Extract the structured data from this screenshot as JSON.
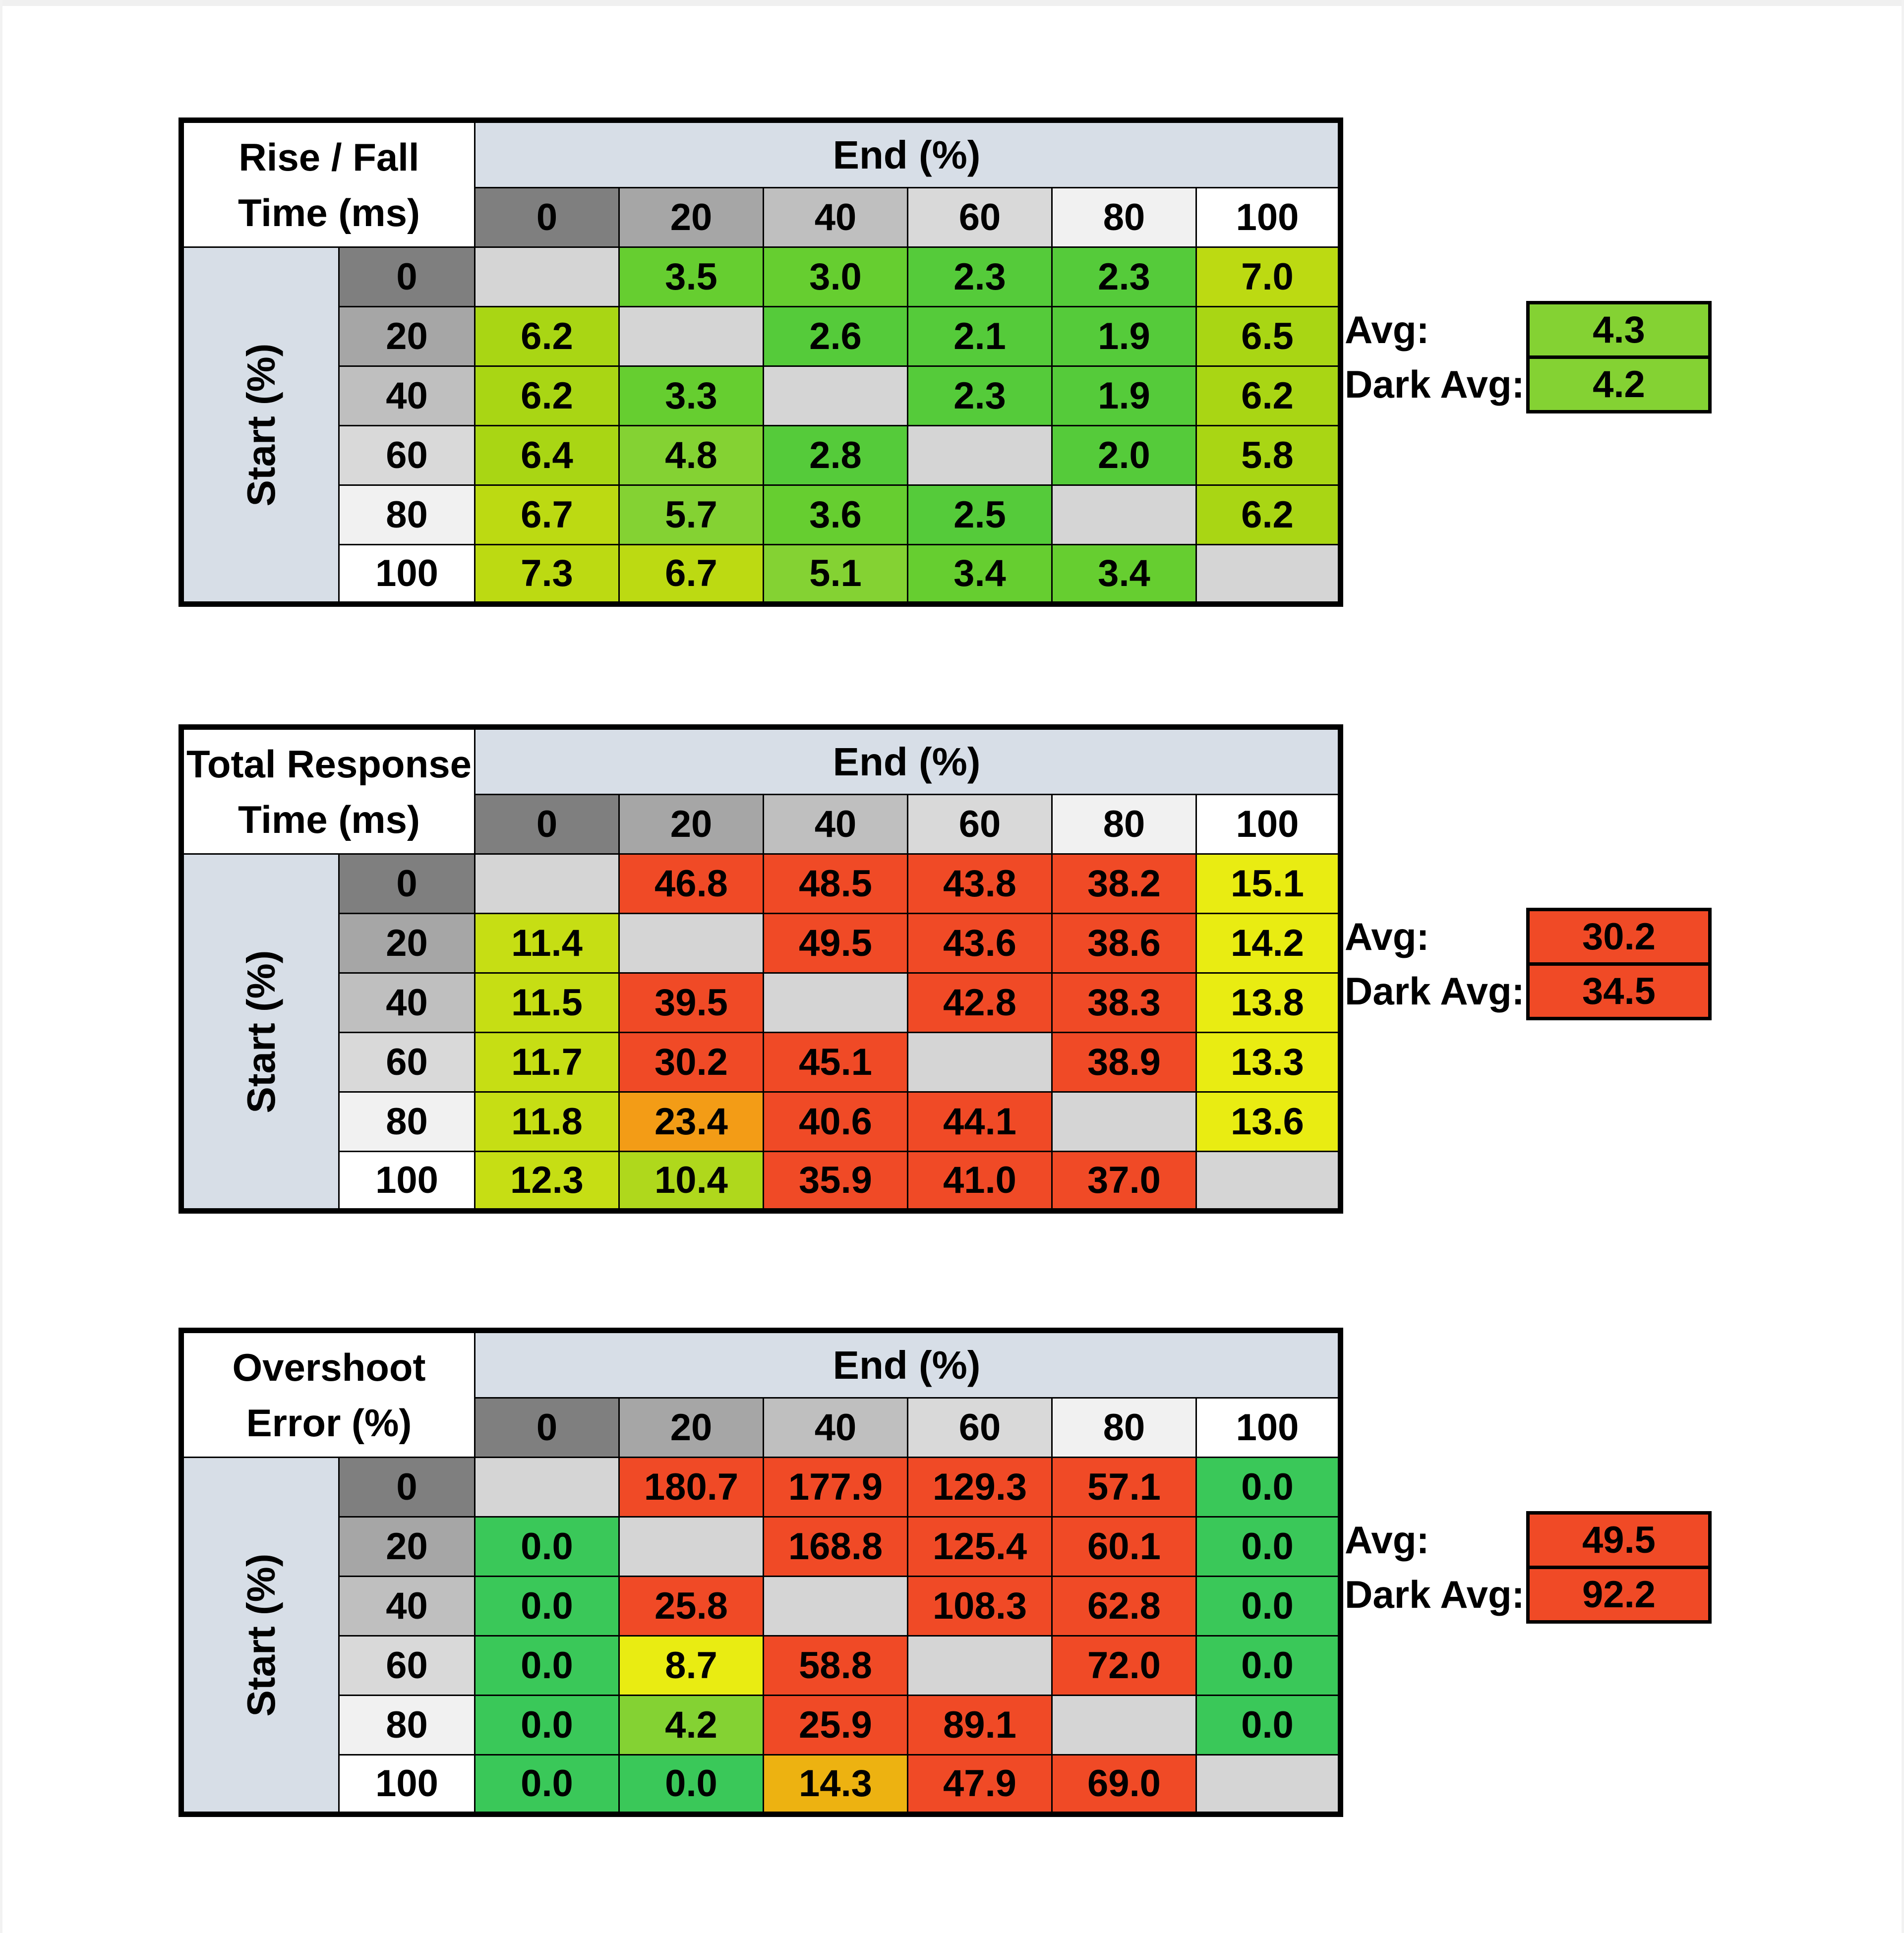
{
  "axis": {
    "col_header": "End (%)",
    "row_header": "Start (%)",
    "levels": [
      "0",
      "20",
      "40",
      "60",
      "80",
      "100"
    ]
  },
  "annotations": {
    "avg_label": "Avg:",
    "dark_avg_label": "Dark Avg:"
  },
  "palette": {
    "G0": "#3AC859",
    "G1": "#55CB3A",
    "G2": "#66CE30",
    "G3": "#84D233",
    "G4": "#A9D614",
    "G5": "#BCDA12",
    "YG": "#C6DE14",
    "YG2": "#AFD81C",
    "Y": "#E9EC12",
    "O1": "#EDB211",
    "O2": "#F39C16",
    "R": "#F04A26",
    "diag": "#D5D5D5"
  },
  "header_colors": {
    "band": "#D7DEE7",
    "scale": [
      "#7F7F7F",
      "#A6A6A6",
      "#BFBFBF",
      "#D9D9D9",
      "#F1F1F1",
      "#FFFFFF"
    ]
  },
  "tables": [
    {
      "title_line1": "Rise / Fall",
      "title_line2": "Time (ms)",
      "avg": {
        "value": "4.3",
        "color": "G3"
      },
      "dark_avg": {
        "value": "4.2",
        "color": "G3"
      },
      "rows": [
        [
          {
            "v": "",
            "c": "diag"
          },
          {
            "v": "3.5",
            "c": "G2"
          },
          {
            "v": "3.0",
            "c": "G2"
          },
          {
            "v": "2.3",
            "c": "G1"
          },
          {
            "v": "2.3",
            "c": "G1"
          },
          {
            "v": "7.0",
            "c": "G5"
          }
        ],
        [
          {
            "v": "6.2",
            "c": "G4"
          },
          {
            "v": "",
            "c": "diag"
          },
          {
            "v": "2.6",
            "c": "G1"
          },
          {
            "v": "2.1",
            "c": "G1"
          },
          {
            "v": "1.9",
            "c": "G1"
          },
          {
            "v": "6.5",
            "c": "G4"
          }
        ],
        [
          {
            "v": "6.2",
            "c": "G4"
          },
          {
            "v": "3.3",
            "c": "G2"
          },
          {
            "v": "",
            "c": "diag"
          },
          {
            "v": "2.3",
            "c": "G1"
          },
          {
            "v": "1.9",
            "c": "G1"
          },
          {
            "v": "6.2",
            "c": "G4"
          }
        ],
        [
          {
            "v": "6.4",
            "c": "G4"
          },
          {
            "v": "4.8",
            "c": "G3"
          },
          {
            "v": "2.8",
            "c": "G1"
          },
          {
            "v": "",
            "c": "diag"
          },
          {
            "v": "2.0",
            "c": "G1"
          },
          {
            "v": "5.8",
            "c": "G4"
          }
        ],
        [
          {
            "v": "6.7",
            "c": "G5"
          },
          {
            "v": "5.7",
            "c": "G3"
          },
          {
            "v": "3.6",
            "c": "G2"
          },
          {
            "v": "2.5",
            "c": "G1"
          },
          {
            "v": "",
            "c": "diag"
          },
          {
            "v": "6.2",
            "c": "G4"
          }
        ],
        [
          {
            "v": "7.3",
            "c": "G5"
          },
          {
            "v": "6.7",
            "c": "G5"
          },
          {
            "v": "5.1",
            "c": "G3"
          },
          {
            "v": "3.4",
            "c": "G2"
          },
          {
            "v": "3.4",
            "c": "G2"
          },
          {
            "v": "",
            "c": "diag"
          }
        ]
      ]
    },
    {
      "title_line1": "Total Response",
      "title_line2": "Time (ms)",
      "avg": {
        "value": "30.2",
        "color": "R"
      },
      "dark_avg": {
        "value": "34.5",
        "color": "R"
      },
      "rows": [
        [
          {
            "v": "",
            "c": "diag"
          },
          {
            "v": "46.8",
            "c": "R"
          },
          {
            "v": "48.5",
            "c": "R"
          },
          {
            "v": "43.8",
            "c": "R"
          },
          {
            "v": "38.2",
            "c": "R"
          },
          {
            "v": "15.1",
            "c": "Y"
          }
        ],
        [
          {
            "v": "11.4",
            "c": "YG"
          },
          {
            "v": "",
            "c": "diag"
          },
          {
            "v": "49.5",
            "c": "R"
          },
          {
            "v": "43.6",
            "c": "R"
          },
          {
            "v": "38.6",
            "c": "R"
          },
          {
            "v": "14.2",
            "c": "Y"
          }
        ],
        [
          {
            "v": "11.5",
            "c": "YG"
          },
          {
            "v": "39.5",
            "c": "R"
          },
          {
            "v": "",
            "c": "diag"
          },
          {
            "v": "42.8",
            "c": "R"
          },
          {
            "v": "38.3",
            "c": "R"
          },
          {
            "v": "13.8",
            "c": "Y"
          }
        ],
        [
          {
            "v": "11.7",
            "c": "YG"
          },
          {
            "v": "30.2",
            "c": "R"
          },
          {
            "v": "45.1",
            "c": "R"
          },
          {
            "v": "",
            "c": "diag"
          },
          {
            "v": "38.9",
            "c": "R"
          },
          {
            "v": "13.3",
            "c": "Y"
          }
        ],
        [
          {
            "v": "11.8",
            "c": "YG"
          },
          {
            "v": "23.4",
            "c": "O2"
          },
          {
            "v": "40.6",
            "c": "R"
          },
          {
            "v": "44.1",
            "c": "R"
          },
          {
            "v": "",
            "c": "diag"
          },
          {
            "v": "13.6",
            "c": "Y"
          }
        ],
        [
          {
            "v": "12.3",
            "c": "YG"
          },
          {
            "v": "10.4",
            "c": "YG2"
          },
          {
            "v": "35.9",
            "c": "R"
          },
          {
            "v": "41.0",
            "c": "R"
          },
          {
            "v": "37.0",
            "c": "R"
          },
          {
            "v": "",
            "c": "diag"
          }
        ]
      ]
    },
    {
      "title_line1": "Overshoot",
      "title_line2": "Error (%)",
      "avg": {
        "value": "49.5",
        "color": "R"
      },
      "dark_avg": {
        "value": "92.2",
        "color": "R"
      },
      "rows": [
        [
          {
            "v": "",
            "c": "diag"
          },
          {
            "v": "180.7",
            "c": "R"
          },
          {
            "v": "177.9",
            "c": "R"
          },
          {
            "v": "129.3",
            "c": "R"
          },
          {
            "v": "57.1",
            "c": "R"
          },
          {
            "v": "0.0",
            "c": "G0"
          }
        ],
        [
          {
            "v": "0.0",
            "c": "G0"
          },
          {
            "v": "",
            "c": "diag"
          },
          {
            "v": "168.8",
            "c": "R"
          },
          {
            "v": "125.4",
            "c": "R"
          },
          {
            "v": "60.1",
            "c": "R"
          },
          {
            "v": "0.0",
            "c": "G0"
          }
        ],
        [
          {
            "v": "0.0",
            "c": "G0"
          },
          {
            "v": "25.8",
            "c": "R"
          },
          {
            "v": "",
            "c": "diag"
          },
          {
            "v": "108.3",
            "c": "R"
          },
          {
            "v": "62.8",
            "c": "R"
          },
          {
            "v": "0.0",
            "c": "G0"
          }
        ],
        [
          {
            "v": "0.0",
            "c": "G0"
          },
          {
            "v": "8.7",
            "c": "Y"
          },
          {
            "v": "58.8",
            "c": "R"
          },
          {
            "v": "",
            "c": "diag"
          },
          {
            "v": "72.0",
            "c": "R"
          },
          {
            "v": "0.0",
            "c": "G0"
          }
        ],
        [
          {
            "v": "0.0",
            "c": "G0"
          },
          {
            "v": "4.2",
            "c": "G3"
          },
          {
            "v": "25.9",
            "c": "R"
          },
          {
            "v": "89.1",
            "c": "R"
          },
          {
            "v": "",
            "c": "diag"
          },
          {
            "v": "0.0",
            "c": "G0"
          }
        ],
        [
          {
            "v": "0.0",
            "c": "G0"
          },
          {
            "v": "0.0",
            "c": "G0"
          },
          {
            "v": "14.3",
            "c": "O1"
          },
          {
            "v": "47.9",
            "c": "R"
          },
          {
            "v": "69.0",
            "c": "R"
          },
          {
            "v": "",
            "c": "diag"
          }
        ]
      ]
    }
  ],
  "chart_data": [
    {
      "type": "heatmap",
      "title": "Rise / Fall Time (ms)",
      "xlabel": "End (%)",
      "ylabel": "Start (%)",
      "x": [
        0,
        20,
        40,
        60,
        80,
        100
      ],
      "y": [
        0,
        20,
        40,
        60,
        80,
        100
      ],
      "values": [
        [
          null,
          3.5,
          3.0,
          2.3,
          2.3,
          7.0
        ],
        [
          6.2,
          null,
          2.6,
          2.1,
          1.9,
          6.5
        ],
        [
          6.2,
          3.3,
          null,
          2.3,
          1.9,
          6.2
        ],
        [
          6.4,
          4.8,
          2.8,
          null,
          2.0,
          5.8
        ],
        [
          6.7,
          5.7,
          3.6,
          2.5,
          null,
          6.2
        ],
        [
          7.3,
          6.7,
          5.1,
          3.4,
          3.4,
          null
        ]
      ],
      "avg": 4.3,
      "dark_avg": 4.2
    },
    {
      "type": "heatmap",
      "title": "Total Response Time (ms)",
      "xlabel": "End (%)",
      "ylabel": "Start (%)",
      "x": [
        0,
        20,
        40,
        60,
        80,
        100
      ],
      "y": [
        0,
        20,
        40,
        60,
        80,
        100
      ],
      "values": [
        [
          null,
          46.8,
          48.5,
          43.8,
          38.2,
          15.1
        ],
        [
          11.4,
          null,
          49.5,
          43.6,
          38.6,
          14.2
        ],
        [
          11.5,
          39.5,
          null,
          42.8,
          38.3,
          13.8
        ],
        [
          11.7,
          30.2,
          45.1,
          null,
          38.9,
          13.3
        ],
        [
          11.8,
          23.4,
          40.6,
          44.1,
          null,
          13.6
        ],
        [
          12.3,
          10.4,
          35.9,
          41.0,
          37.0,
          null
        ]
      ],
      "avg": 30.2,
      "dark_avg": 34.5
    },
    {
      "type": "heatmap",
      "title": "Overshoot Error (%)",
      "xlabel": "End (%)",
      "ylabel": "Start (%)",
      "x": [
        0,
        20,
        40,
        60,
        80,
        100
      ],
      "y": [
        0,
        20,
        40,
        60,
        80,
        100
      ],
      "values": [
        [
          null,
          180.7,
          177.9,
          129.3,
          57.1,
          0.0
        ],
        [
          0.0,
          null,
          168.8,
          125.4,
          60.1,
          0.0
        ],
        [
          0.0,
          25.8,
          null,
          108.3,
          62.8,
          0.0
        ],
        [
          0.0,
          8.7,
          58.8,
          null,
          72.0,
          0.0
        ],
        [
          0.0,
          4.2,
          25.9,
          89.1,
          null,
          0.0
        ],
        [
          0.0,
          0.0,
          14.3,
          47.9,
          69.0,
          null
        ]
      ],
      "avg": 49.5,
      "dark_avg": 92.2
    }
  ]
}
